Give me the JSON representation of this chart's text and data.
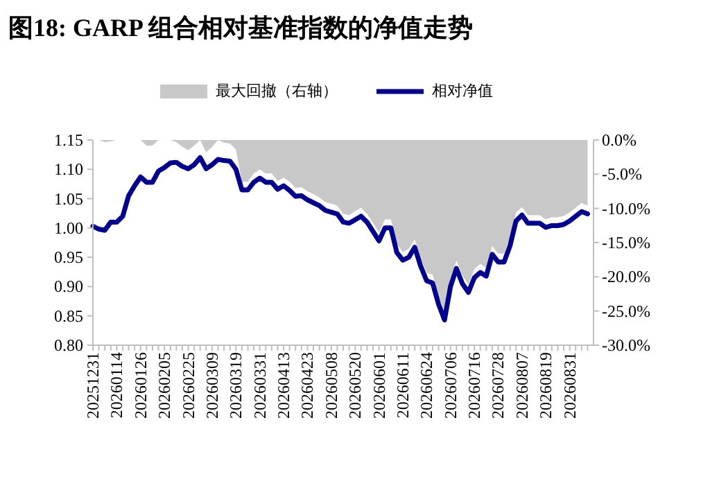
{
  "chart_data": {
    "type": "line",
    "title": "图18: GARP 组合相对基准指数的净值走势",
    "categories": [
      "20251231",
      null,
      null,
      null,
      "20260114",
      null,
      null,
      null,
      "20260126",
      null,
      null,
      null,
      "20260205",
      null,
      null,
      null,
      "20260225",
      null,
      null,
      null,
      "20260309",
      null,
      null,
      null,
      "20260319",
      null,
      null,
      null,
      "20260331",
      null,
      null,
      null,
      "20260413",
      null,
      null,
      null,
      "20260423",
      null,
      null,
      null,
      "20260508",
      null,
      null,
      null,
      "20260520",
      null,
      null,
      null,
      "20260601",
      null,
      null,
      null,
      "20260611",
      null,
      null,
      null,
      "20260624",
      null,
      null,
      null,
      "20260706",
      null,
      null,
      null,
      "20260716",
      null,
      null,
      null,
      "20260728",
      null,
      null,
      null,
      "20260807",
      null,
      null,
      null,
      "20260819",
      null,
      null,
      null,
      "20260831",
      null,
      null,
      null
    ],
    "series": [
      {
        "name": "最大回撤（右轴）",
        "type": "area",
        "axis": "y2",
        "color": "#c8c8c8",
        "values": [
          0,
          0,
          -0.3,
          -0.2,
          0,
          0,
          0,
          0,
          0,
          -0.8,
          -0.8,
          0,
          0,
          0,
          -0.3,
          -1.0,
          -1.5,
          -0.8,
          0,
          -1.8,
          -1.0,
          0,
          -0.4,
          -0.5,
          -1.4,
          -6.1,
          -6.1,
          -4.9,
          -4.3,
          -4.9,
          -4.9,
          -6.0,
          -5.5,
          -6.1,
          -7.0,
          -6.9,
          -7.5,
          -7.9,
          -8.4,
          -9.1,
          -9.3,
          -9.6,
          -10.8,
          -11.0,
          -10.4,
          -9.9,
          -10.8,
          -12.1,
          -13.5,
          -11.6,
          -11.6,
          -15.2,
          -16.4,
          -15.9,
          -14.5,
          -17.2,
          -19.4,
          -19.7,
          -22.8,
          -25.1,
          -20.2,
          -17.6,
          -19.8,
          -21.1,
          -18.9,
          -18.1,
          -18.7,
          -15.5,
          -16.6,
          -16.6,
          -14.2,
          -10.6,
          -9.8,
          -11.0,
          -11.0,
          -11.0,
          -11.6,
          -11.3,
          -11.3,
          -11.1,
          -10.6,
          -9.9,
          -9.2,
          -9.6
        ]
      },
      {
        "name": "相对净值",
        "type": "line",
        "color": "#00008b",
        "values": [
          1.003,
          0.998,
          0.996,
          1.01,
          1.01,
          1.02,
          1.055,
          1.072,
          1.087,
          1.078,
          1.078,
          1.097,
          1.103,
          1.111,
          1.112,
          1.105,
          1.101,
          1.108,
          1.12,
          1.101,
          1.108,
          1.117,
          1.115,
          1.114,
          1.1,
          1.065,
          1.065,
          1.078,
          1.085,
          1.078,
          1.078,
          1.066,
          1.072,
          1.064,
          1.054,
          1.055,
          1.048,
          1.043,
          1.038,
          1.03,
          1.027,
          1.024,
          1.01,
          1.008,
          1.014,
          1.02,
          1.01,
          0.994,
          0.978,
          1.0,
          1.0,
          0.958,
          0.945,
          0.95,
          0.967,
          0.935,
          0.91,
          0.906,
          0.87,
          0.843,
          0.9,
          0.931,
          0.905,
          0.89,
          0.915,
          0.924,
          0.918,
          0.955,
          0.942,
          0.942,
          0.97,
          1.012,
          1.022,
          1.008,
          1.008,
          1.008,
          1.001,
          1.004,
          1.004,
          1.006,
          1.012,
          1.02,
          1.028,
          1.024
        ]
      }
    ],
    "ylim": [
      0.8,
      1.15
    ],
    "yticks": [
      {
        "value": 0.8,
        "label": "0.80"
      },
      {
        "value": 0.85,
        "label": "0.85"
      },
      {
        "value": 0.9,
        "label": "0.90"
      },
      {
        "value": 0.95,
        "label": "0.95"
      },
      {
        "value": 1.0,
        "label": "1.00"
      },
      {
        "value": 1.05,
        "label": "1.05"
      },
      {
        "value": 1.1,
        "label": "1.10"
      },
      {
        "value": 1.15,
        "label": "1.15"
      }
    ],
    "y2lim": [
      -30,
      0
    ],
    "y2ticks": [
      {
        "value": 0,
        "label": "0.0%"
      },
      {
        "value": -5,
        "label": "-5.0%"
      },
      {
        "value": -10,
        "label": "-10.0%"
      },
      {
        "value": -15,
        "label": "-15.0%"
      },
      {
        "value": -20,
        "label": "-20.0%"
      },
      {
        "value": -25,
        "label": "-25.0%"
      },
      {
        "value": -30,
        "label": "-30.0%"
      }
    ],
    "legend": "top"
  }
}
